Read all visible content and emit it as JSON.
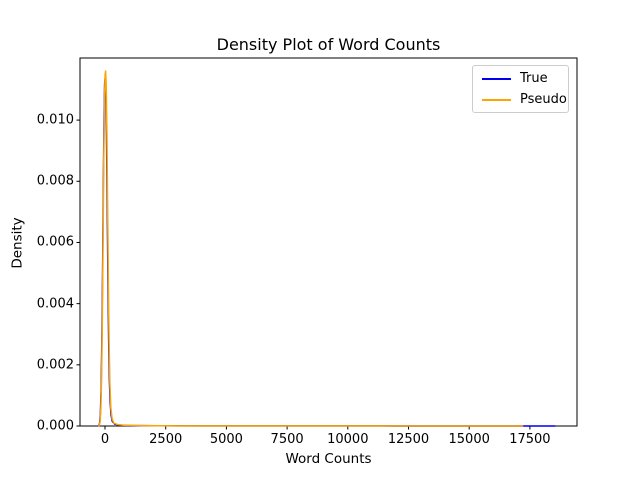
{
  "figure": {
    "background": "#ffffff",
    "text_color": "#000000",
    "spine_color": "#000000",
    "legend_border_color": "#cccccc"
  },
  "chart_data": {
    "type": "line",
    "title": "Density Plot of Word Counts",
    "xlabel": "Word Counts",
    "ylabel": "Density",
    "xlim": [
      -1030,
      19440
    ],
    "ylim": [
      0,
      0.01203
    ],
    "grid": false,
    "legend_position": "upper right",
    "xticks": {
      "values": [
        0,
        2500,
        5000,
        7500,
        10000,
        12500,
        15000,
        17500
      ],
      "labels": [
        "0",
        "2500",
        "5000",
        "7500",
        "10000",
        "12500",
        "15000",
        "17500"
      ]
    },
    "yticks": {
      "values": [
        0,
        0.002,
        0.004,
        0.006,
        0.008,
        0.01
      ],
      "labels": [
        "0.000",
        "0.002",
        "0.004",
        "0.006",
        "0.008",
        "0.010"
      ]
    },
    "series": [
      {
        "name": "True",
        "color": "#0000ee",
        "points": [
          [
            -280,
            0
          ],
          [
            -250,
            2e-05
          ],
          [
            -220,
            0.0001
          ],
          [
            -190,
            0.0004
          ],
          [
            -160,
            0.0012
          ],
          [
            -130,
            0.0028
          ],
          [
            -100,
            0.005
          ],
          [
            -70,
            0.0078
          ],
          [
            -40,
            0.0101
          ],
          [
            -15,
            0.0112
          ],
          [
            10,
            0.0114
          ],
          [
            35,
            0.0109
          ],
          [
            60,
            0.0096
          ],
          [
            90,
            0.0073
          ],
          [
            120,
            0.0048
          ],
          [
            150,
            0.0028
          ],
          [
            180,
            0.0015
          ],
          [
            210,
            0.0008
          ],
          [
            250,
            0.00035
          ],
          [
            300,
            0.00015
          ],
          [
            400,
            6e-05
          ],
          [
            600,
            3e-05
          ],
          [
            1000,
            1.5e-05
          ],
          [
            2000,
            8e-06
          ],
          [
            4000,
            5e-06
          ],
          [
            8000,
            3e-06
          ],
          [
            12000,
            2e-06
          ],
          [
            15000,
            1.5e-06
          ],
          [
            17000,
            1e-06
          ],
          [
            18000,
            5e-07
          ],
          [
            18530,
            0
          ]
        ]
      },
      {
        "name": "Pseudo",
        "color": "#ffa500",
        "points": [
          [
            -260,
            0
          ],
          [
            -230,
            3e-05
          ],
          [
            -200,
            0.00015
          ],
          [
            -170,
            0.0006
          ],
          [
            -140,
            0.0016
          ],
          [
            -110,
            0.0035
          ],
          [
            -80,
            0.006
          ],
          [
            -50,
            0.0088
          ],
          [
            -20,
            0.0107
          ],
          [
            5,
            0.0115
          ],
          [
            25,
            0.0116
          ],
          [
            50,
            0.0111
          ],
          [
            80,
            0.0095
          ],
          [
            110,
            0.007
          ],
          [
            140,
            0.0046
          ],
          [
            170,
            0.0027
          ],
          [
            200,
            0.0014
          ],
          [
            240,
            0.0006
          ],
          [
            290,
            0.00025
          ],
          [
            360,
            0.0001
          ],
          [
            500,
            5e-05
          ],
          [
            800,
            2.5e-05
          ],
          [
            1500,
            1.2e-05
          ],
          [
            3000,
            6e-06
          ],
          [
            6000,
            4e-06
          ],
          [
            10000,
            2.5e-06
          ],
          [
            13000,
            1.8e-06
          ],
          [
            15500,
            1e-06
          ],
          [
            16500,
            5e-07
          ],
          [
            17200,
            0
          ]
        ]
      }
    ]
  }
}
